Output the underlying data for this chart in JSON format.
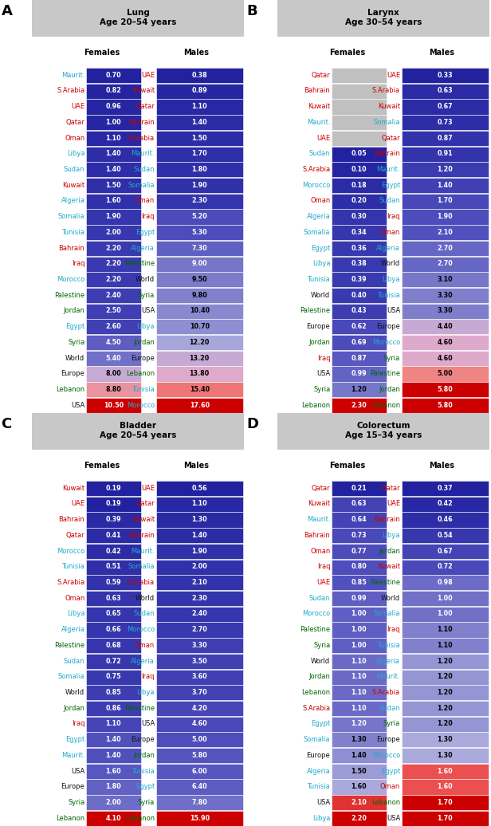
{
  "panels": [
    {
      "label": "A",
      "title_line1": "Lung",
      "title_line2": "Age 20–54 years",
      "females": [
        {
          "country": "Maurit.",
          "value": 0.7,
          "color": "cyan"
        },
        {
          "country": "S.Arabia",
          "value": 0.82,
          "color": "red"
        },
        {
          "country": "UAE",
          "value": 0.96,
          "color": "red"
        },
        {
          "country": "Qatar",
          "value": 1.0,
          "color": "red"
        },
        {
          "country": "Oman",
          "value": 1.1,
          "color": "red"
        },
        {
          "country": "Libya",
          "value": 1.4,
          "color": "cyan"
        },
        {
          "country": "Sudan",
          "value": 1.4,
          "color": "cyan"
        },
        {
          "country": "Kuwait",
          "value": 1.5,
          "color": "red"
        },
        {
          "country": "Algeria",
          "value": 1.6,
          "color": "cyan"
        },
        {
          "country": "Somalia",
          "value": 1.9,
          "color": "cyan"
        },
        {
          "country": "Tunisia",
          "value": 2.0,
          "color": "cyan"
        },
        {
          "country": "Bahrain",
          "value": 2.2,
          "color": "red"
        },
        {
          "country": "Iraq",
          "value": 2.2,
          "color": "red"
        },
        {
          "country": "Morocco",
          "value": 2.2,
          "color": "cyan"
        },
        {
          "country": "Palestine",
          "value": 2.4,
          "color": "green"
        },
        {
          "country": "Jordan",
          "value": 2.5,
          "color": "green"
        },
        {
          "country": "Egypt",
          "value": 2.6,
          "color": "cyan"
        },
        {
          "country": "Syria",
          "value": 4.5,
          "color": "green"
        },
        {
          "country": "World",
          "value": 5.4,
          "color": "black"
        },
        {
          "country": "Europe",
          "value": 8.0,
          "color": "black"
        },
        {
          "country": "Lebanon",
          "value": 8.8,
          "color": "green"
        },
        {
          "country": "USA",
          "value": 10.5,
          "color": "black"
        }
      ],
      "males": [
        {
          "country": "UAE",
          "value": 0.38,
          "color": "red"
        },
        {
          "country": "Kuwait",
          "value": 0.89,
          "color": "red"
        },
        {
          "country": "Qatar",
          "value": 1.1,
          "color": "red"
        },
        {
          "country": "Bahrain",
          "value": 1.4,
          "color": "red"
        },
        {
          "country": "S.Arabia",
          "value": 1.5,
          "color": "red"
        },
        {
          "country": "Maurit.",
          "value": 1.7,
          "color": "cyan"
        },
        {
          "country": "Sudan",
          "value": 1.8,
          "color": "cyan"
        },
        {
          "country": "Somalia",
          "value": 1.9,
          "color": "cyan"
        },
        {
          "country": "Oman",
          "value": 2.3,
          "color": "red"
        },
        {
          "country": "Iraq",
          "value": 5.2,
          "color": "red"
        },
        {
          "country": "Egypt",
          "value": 5.3,
          "color": "cyan"
        },
        {
          "country": "Algeria",
          "value": 7.3,
          "color": "cyan"
        },
        {
          "country": "Palestine",
          "value": 9.0,
          "color": "green"
        },
        {
          "country": "World",
          "value": 9.5,
          "color": "black"
        },
        {
          "country": "Syria",
          "value": 9.8,
          "color": "green"
        },
        {
          "country": "USA",
          "value": 10.4,
          "color": "black"
        },
        {
          "country": "Libya",
          "value": 10.7,
          "color": "cyan"
        },
        {
          "country": "Jordan",
          "value": 12.2,
          "color": "green"
        },
        {
          "country": "Europe",
          "value": 13.2,
          "color": "black"
        },
        {
          "country": "Lebanon",
          "value": 13.8,
          "color": "green"
        },
        {
          "country": "Tunisia",
          "value": 15.4,
          "color": "cyan"
        },
        {
          "country": "Morocco",
          "value": 17.6,
          "color": "cyan"
        }
      ]
    },
    {
      "label": "B",
      "title_line1": "Larynx",
      "title_line2": "Age 30–54 years",
      "females": [
        {
          "country": "Qatar",
          "value": null,
          "color": "red"
        },
        {
          "country": "Bahrain",
          "value": null,
          "color": "red"
        },
        {
          "country": "Kuwait",
          "value": null,
          "color": "red"
        },
        {
          "country": "Maurit.",
          "value": null,
          "color": "cyan"
        },
        {
          "country": "UAE",
          "value": null,
          "color": "red"
        },
        {
          "country": "Sudan",
          "value": 0.05,
          "color": "cyan"
        },
        {
          "country": "S.Arabia",
          "value": 0.1,
          "color": "red"
        },
        {
          "country": "Morocco",
          "value": 0.18,
          "color": "cyan"
        },
        {
          "country": "Oman",
          "value": 0.2,
          "color": "red"
        },
        {
          "country": "Algeria",
          "value": 0.3,
          "color": "cyan"
        },
        {
          "country": "Somalia",
          "value": 0.34,
          "color": "cyan"
        },
        {
          "country": "Egypt",
          "value": 0.36,
          "color": "cyan"
        },
        {
          "country": "Libya",
          "value": 0.38,
          "color": "cyan"
        },
        {
          "country": "Tunisia",
          "value": 0.39,
          "color": "cyan"
        },
        {
          "country": "World",
          "value": 0.4,
          "color": "black"
        },
        {
          "country": "Palestine",
          "value": 0.43,
          "color": "green"
        },
        {
          "country": "Europe",
          "value": 0.62,
          "color": "black"
        },
        {
          "country": "Jordan",
          "value": 0.69,
          "color": "green"
        },
        {
          "country": "Iraq",
          "value": 0.87,
          "color": "red"
        },
        {
          "country": "USA",
          "value": 0.99,
          "color": "black"
        },
        {
          "country": "Syria",
          "value": 1.2,
          "color": "green"
        },
        {
          "country": "Lebanon",
          "value": 2.3,
          "color": "green"
        }
      ],
      "males": [
        {
          "country": "UAE",
          "value": 0.33,
          "color": "red"
        },
        {
          "country": "S.Arabia",
          "value": 0.63,
          "color": "red"
        },
        {
          "country": "Kuwait",
          "value": 0.67,
          "color": "red"
        },
        {
          "country": "Somalia",
          "value": 0.73,
          "color": "cyan"
        },
        {
          "country": "Qatar",
          "value": 0.87,
          "color": "red"
        },
        {
          "country": "Bahrain",
          "value": 0.91,
          "color": "red"
        },
        {
          "country": "Maurit.",
          "value": 1.2,
          "color": "cyan"
        },
        {
          "country": "Egypt",
          "value": 1.4,
          "color": "cyan"
        },
        {
          "country": "Sudan",
          "value": 1.7,
          "color": "cyan"
        },
        {
          "country": "Iraq",
          "value": 1.9,
          "color": "red"
        },
        {
          "country": "Oman",
          "value": 2.1,
          "color": "red"
        },
        {
          "country": "Algeria",
          "value": 2.7,
          "color": "cyan"
        },
        {
          "country": "World",
          "value": 2.7,
          "color": "black"
        },
        {
          "country": "Libya",
          "value": 3.1,
          "color": "cyan"
        },
        {
          "country": "Tunisia",
          "value": 3.3,
          "color": "cyan"
        },
        {
          "country": "USA",
          "value": 3.3,
          "color": "black"
        },
        {
          "country": "Europe",
          "value": 4.4,
          "color": "black"
        },
        {
          "country": "Morocco",
          "value": 4.6,
          "color": "cyan"
        },
        {
          "country": "Syria",
          "value": 4.6,
          "color": "green"
        },
        {
          "country": "Palestine",
          "value": 5.0,
          "color": "green"
        },
        {
          "country": "Jordan",
          "value": 5.8,
          "color": "green"
        },
        {
          "country": "Lebanon",
          "value": 5.8,
          "color": "green"
        }
      ]
    },
    {
      "label": "C",
      "title_line1": "Bladder",
      "title_line2": "Age 20–54 years",
      "females": [
        {
          "country": "Kuwait",
          "value": 0.19,
          "color": "red"
        },
        {
          "country": "UAE",
          "value": 0.19,
          "color": "red"
        },
        {
          "country": "Bahrain",
          "value": 0.39,
          "color": "red"
        },
        {
          "country": "Qatar",
          "value": 0.41,
          "color": "red"
        },
        {
          "country": "Morocco",
          "value": 0.42,
          "color": "cyan"
        },
        {
          "country": "Tunisia",
          "value": 0.51,
          "color": "cyan"
        },
        {
          "country": "S.Arabia",
          "value": 0.59,
          "color": "red"
        },
        {
          "country": "Oman",
          "value": 0.63,
          "color": "red"
        },
        {
          "country": "Libya",
          "value": 0.65,
          "color": "cyan"
        },
        {
          "country": "Algeria",
          "value": 0.66,
          "color": "cyan"
        },
        {
          "country": "Palestine",
          "value": 0.68,
          "color": "green"
        },
        {
          "country": "Sudan",
          "value": 0.72,
          "color": "cyan"
        },
        {
          "country": "Somalia",
          "value": 0.75,
          "color": "cyan"
        },
        {
          "country": "World",
          "value": 0.85,
          "color": "black"
        },
        {
          "country": "Jordan",
          "value": 0.86,
          "color": "green"
        },
        {
          "country": "Iraq",
          "value": 1.1,
          "color": "red"
        },
        {
          "country": "Egypt",
          "value": 1.4,
          "color": "cyan"
        },
        {
          "country": "Maurit.",
          "value": 1.4,
          "color": "cyan"
        },
        {
          "country": "USA",
          "value": 1.6,
          "color": "black"
        },
        {
          "country": "Europe",
          "value": 1.8,
          "color": "black"
        },
        {
          "country": "Syria",
          "value": 2.0,
          "color": "green"
        },
        {
          "country": "Lebanon",
          "value": 4.1,
          "color": "green"
        }
      ],
      "males": [
        {
          "country": "UAE",
          "value": 0.56,
          "color": "red"
        },
        {
          "country": "Qatar",
          "value": 1.1,
          "color": "red"
        },
        {
          "country": "Kuwait",
          "value": 1.3,
          "color": "red"
        },
        {
          "country": "Bahrain",
          "value": 1.4,
          "color": "red"
        },
        {
          "country": "Maurit.",
          "value": 1.9,
          "color": "cyan"
        },
        {
          "country": "Somalia",
          "value": 2.0,
          "color": "cyan"
        },
        {
          "country": "S.Arabia",
          "value": 2.1,
          "color": "red"
        },
        {
          "country": "World",
          "value": 2.3,
          "color": "black"
        },
        {
          "country": "Sudan",
          "value": 2.4,
          "color": "cyan"
        },
        {
          "country": "Morocco",
          "value": 2.7,
          "color": "cyan"
        },
        {
          "country": "Oman",
          "value": 3.3,
          "color": "red"
        },
        {
          "country": "Algeria",
          "value": 3.5,
          "color": "cyan"
        },
        {
          "country": "Iraq",
          "value": 3.6,
          "color": "red"
        },
        {
          "country": "Libya",
          "value": 3.7,
          "color": "cyan"
        },
        {
          "country": "Palestine",
          "value": 4.2,
          "color": "green"
        },
        {
          "country": "USA",
          "value": 4.6,
          "color": "black"
        },
        {
          "country": "Europe",
          "value": 5.0,
          "color": "black"
        },
        {
          "country": "Jordan",
          "value": 5.8,
          "color": "green"
        },
        {
          "country": "Tunisia",
          "value": 6.0,
          "color": "cyan"
        },
        {
          "country": "Egypt",
          "value": 6.4,
          "color": "cyan"
        },
        {
          "country": "Syria",
          "value": 7.8,
          "color": "green"
        },
        {
          "country": "Lebanon",
          "value": 15.9,
          "color": "green"
        }
      ]
    },
    {
      "label": "D",
      "title_line1": "Colorectum",
      "title_line2": "Age 15–34 years",
      "females": [
        {
          "country": "Qatar",
          "value": 0.21,
          "color": "red"
        },
        {
          "country": "Kuwait",
          "value": 0.63,
          "color": "red"
        },
        {
          "country": "Maurit.",
          "value": 0.64,
          "color": "cyan"
        },
        {
          "country": "Bahrain",
          "value": 0.73,
          "color": "red"
        },
        {
          "country": "Oman",
          "value": 0.77,
          "color": "red"
        },
        {
          "country": "Iraq",
          "value": 0.8,
          "color": "red"
        },
        {
          "country": "UAE",
          "value": 0.85,
          "color": "red"
        },
        {
          "country": "Sudan",
          "value": 0.99,
          "color": "cyan"
        },
        {
          "country": "Morocco",
          "value": 1.0,
          "color": "cyan"
        },
        {
          "country": "Palestine",
          "value": 1.0,
          "color": "green"
        },
        {
          "country": "Syria",
          "value": 1.0,
          "color": "green"
        },
        {
          "country": "World",
          "value": 1.1,
          "color": "black"
        },
        {
          "country": "Jordan",
          "value": 1.1,
          "color": "green"
        },
        {
          "country": "Lebanon",
          "value": 1.1,
          "color": "green"
        },
        {
          "country": "S.Arabia",
          "value": 1.1,
          "color": "red"
        },
        {
          "country": "Egypt",
          "value": 1.2,
          "color": "cyan"
        },
        {
          "country": "Somalia",
          "value": 1.3,
          "color": "cyan"
        },
        {
          "country": "Europe",
          "value": 1.4,
          "color": "black"
        },
        {
          "country": "Algeria",
          "value": 1.5,
          "color": "cyan"
        },
        {
          "country": "Tunisia",
          "value": 1.6,
          "color": "cyan"
        },
        {
          "country": "USA",
          "value": 2.1,
          "color": "black"
        },
        {
          "country": "Libya",
          "value": 2.2,
          "color": "cyan"
        }
      ],
      "males": [
        {
          "country": "Qatar",
          "value": 0.37,
          "color": "red"
        },
        {
          "country": "UAE",
          "value": 0.42,
          "color": "red"
        },
        {
          "country": "Bahrain",
          "value": 0.46,
          "color": "red"
        },
        {
          "country": "Libya",
          "value": 0.54,
          "color": "cyan"
        },
        {
          "country": "Jordan",
          "value": 0.67,
          "color": "green"
        },
        {
          "country": "Kuwait",
          "value": 0.72,
          "color": "red"
        },
        {
          "country": "Palestine",
          "value": 0.98,
          "color": "green"
        },
        {
          "country": "World",
          "value": 1.0,
          "color": "black"
        },
        {
          "country": "Somalia",
          "value": 1.0,
          "color": "cyan"
        },
        {
          "country": "Iraq",
          "value": 1.1,
          "color": "red"
        },
        {
          "country": "Tunisia",
          "value": 1.1,
          "color": "cyan"
        },
        {
          "country": "Algeria",
          "value": 1.2,
          "color": "cyan"
        },
        {
          "country": "Maurit.",
          "value": 1.2,
          "color": "cyan"
        },
        {
          "country": "S.Arabia",
          "value": 1.2,
          "color": "red"
        },
        {
          "country": "Sudan",
          "value": 1.2,
          "color": "cyan"
        },
        {
          "country": "Syria",
          "value": 1.2,
          "color": "green"
        },
        {
          "country": "Europe",
          "value": 1.3,
          "color": "black"
        },
        {
          "country": "Morocco",
          "value": 1.3,
          "color": "cyan"
        },
        {
          "country": "Egypt",
          "value": 1.6,
          "color": "cyan"
        },
        {
          "country": "Oman",
          "value": 1.6,
          "color": "red"
        },
        {
          "country": "Lebanon",
          "value": 1.7,
          "color": "green"
        },
        {
          "country": "USA",
          "value": 1.7,
          "color": "black"
        }
      ]
    }
  ],
  "color_map": {
    "red": "#cc0000",
    "cyan": "#22aacc",
    "green": "#006600",
    "black": "#111111"
  }
}
